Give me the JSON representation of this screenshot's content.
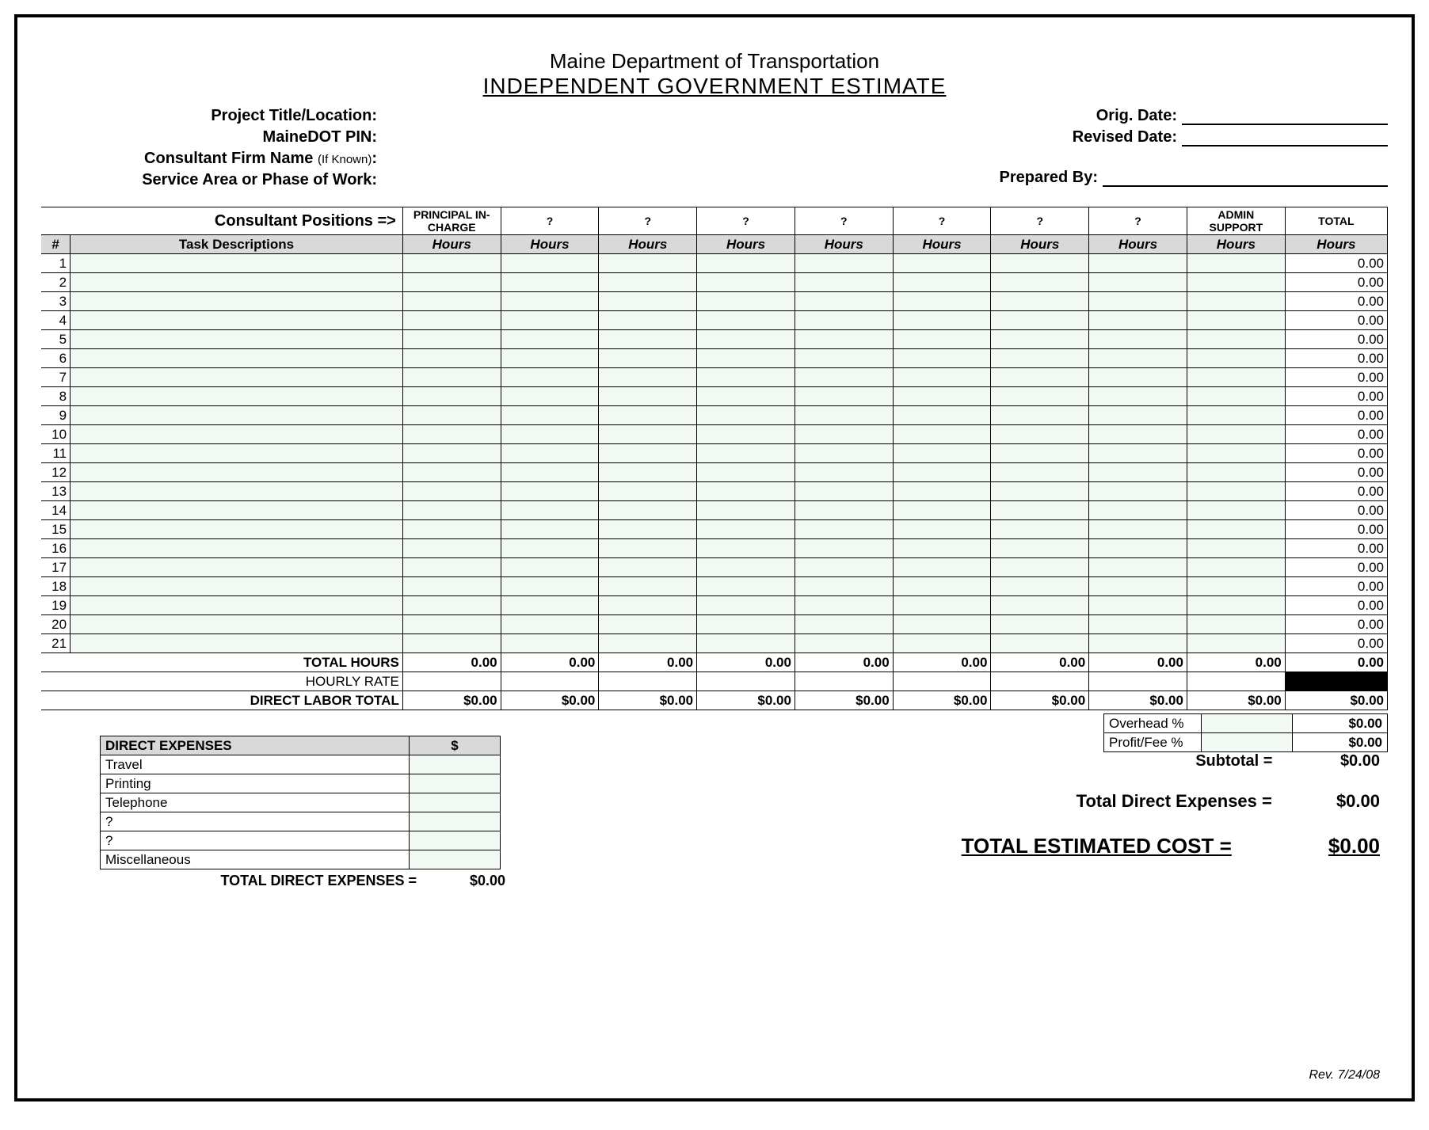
{
  "colors": {
    "input_bg": "#f3faf3",
    "header_bg": "#d9d9d9",
    "border": "#000000",
    "blackfill": "#000000"
  },
  "title": {
    "org": "Maine Department of Transportation",
    "main": "INDEPENDENT GOVERNMENT ESTIMATE"
  },
  "header_left_labels": {
    "project": "Project Title/Location:",
    "pin": "MaineDOT PIN:",
    "firm_prefix": "Consultant Firm Name ",
    "firm_small": "(If Known)",
    "firm_suffix": ":",
    "service": "Service Area or Phase of Work:"
  },
  "header_right_labels": {
    "orig": "Orig. Date:",
    "revised": "Revised Date:",
    "prepared": "Prepared By:"
  },
  "main_table": {
    "positions_label": "Consultant Positions  =>",
    "num_header": "#",
    "desc_header": "Task Descriptions",
    "hours_sub": "Hours",
    "total_header": "TOTAL",
    "position_headers": [
      "PRINCIPAL IN-CHARGE",
      "?",
      "?",
      "?",
      "?",
      "?",
      "?",
      "?",
      "ADMIN SUPPORT"
    ],
    "row_count": 21,
    "row_total_value": "0.00",
    "total_hours_label": "TOTAL HOURS",
    "total_hours_values": [
      "0.00",
      "0.00",
      "0.00",
      "0.00",
      "0.00",
      "0.00",
      "0.00",
      "0.00",
      "0.00"
    ],
    "total_hours_total": "0.00",
    "hourly_rate_label": "HOURLY RATE",
    "direct_labor_label": "DIRECT LABOR TOTAL",
    "direct_labor_values": [
      "$0.00",
      "$0.00",
      "$0.00",
      "$0.00",
      "$0.00",
      "$0.00",
      "$0.00",
      "$0.00",
      "$0.00"
    ],
    "direct_labor_total": "$0.00"
  },
  "overhead": {
    "rows": [
      {
        "label": "Overhead %",
        "value": "$0.00"
      },
      {
        "label": "Profit/Fee %",
        "value": "$0.00"
      }
    ]
  },
  "summary": {
    "subtotal_label": "Subtotal =",
    "subtotal_value": "$0.00",
    "tde_summary_label": "Total Direct Expenses =",
    "tde_summary_value": "$0.00",
    "total_cost_label": "TOTAL ESTIMATED COST =",
    "total_cost_value": "$0.00"
  },
  "expenses": {
    "header_label": "DIRECT EXPENSES",
    "header_val": "$",
    "items": [
      "Travel",
      "Printing",
      "Telephone",
      "?",
      "?",
      "Miscellaneous"
    ],
    "total_label": "TOTAL DIRECT EXPENSES =",
    "total_value": "$0.00"
  },
  "footer": {
    "rev": "Rev. 7/24/08"
  }
}
